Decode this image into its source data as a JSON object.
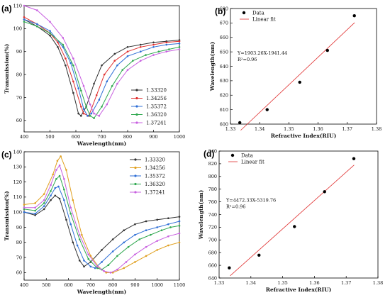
{
  "chart_data": [
    {
      "panel_label": "(a)",
      "type": "line",
      "xlabel": "Wavelength(nm)",
      "ylabel": "Transmission(%)",
      "xlim": [
        400,
        1000
      ],
      "ylim": [
        55,
        110
      ],
      "xticks": [
        400,
        500,
        600,
        700,
        800,
        900,
        1000
      ],
      "yticks": [
        60,
        70,
        80,
        90,
        100,
        110
      ],
      "legend_position": "right",
      "series": [
        {
          "name": "1.33320",
          "color": "#333333",
          "x": [
            400,
            450,
            500,
            530,
            560,
            590,
            610,
            620,
            640,
            670,
            700,
            750,
            800,
            850,
            900,
            950,
            1000
          ],
          "values": [
            104,
            101,
            97,
            92,
            84,
            72,
            63,
            62,
            66,
            76,
            84,
            89,
            92,
            93,
            94,
            94.5,
            95
          ]
        },
        {
          "name": "1.34256",
          "color": "#e03030",
          "x": [
            400,
            450,
            500,
            530,
            560,
            590,
            620,
            630,
            650,
            680,
            710,
            750,
            800,
            850,
            900,
            950,
            1000
          ],
          "values": [
            105,
            102,
            98,
            94,
            87,
            77,
            66,
            63,
            62,
            71,
            80,
            86,
            90,
            92,
            93,
            94,
            94.5
          ]
        },
        {
          "name": "1.35372",
          "color": "#2f6fd6",
          "x": [
            400,
            450,
            500,
            550,
            580,
            610,
            630,
            645,
            660,
            690,
            720,
            760,
            800,
            850,
            900,
            950,
            1000
          ],
          "values": [
            104,
            102,
            99,
            92,
            85,
            74,
            65,
            62,
            63,
            69,
            77,
            84,
            88,
            90,
            92,
            93,
            93.5
          ]
        },
        {
          "name": "1.36320",
          "color": "#2fa84f",
          "x": [
            400,
            450,
            500,
            550,
            590,
            620,
            640,
            655,
            670,
            700,
            740,
            780,
            820,
            870,
            920,
            960,
            1000
          ],
          "values": [
            103,
            101,
            98,
            93,
            84,
            73,
            66,
            62,
            61,
            66,
            75,
            82,
            86,
            88.5,
            90,
            91,
            92
          ]
        },
        {
          "name": "1.37241",
          "color": "#c860e0",
          "x": [
            400,
            450,
            500,
            550,
            590,
            630,
            655,
            670,
            690,
            720,
            760,
            800,
            850,
            900,
            950,
            1000
          ],
          "values": [
            110,
            108,
            103,
            96,
            87,
            75,
            67,
            63,
            62,
            67,
            76,
            82,
            86,
            88.5,
            90,
            91
          ]
        }
      ]
    },
    {
      "panel_label": "(b)",
      "type": "scatter",
      "xlabel": "Refractive Index(RIU)",
      "ylabel": "Wavelength(nm)",
      "xlim": [
        1.33,
        1.38
      ],
      "ylim": [
        600,
        680
      ],
      "xticks": [
        "1.33",
        "1.34",
        "1.35",
        "1.36",
        "1.37",
        "1.38"
      ],
      "yticks": [
        600,
        610,
        620,
        630,
        640,
        650,
        660,
        670,
        680
      ],
      "legend": [
        "Data",
        "Linear fit"
      ],
      "legend_position": "top-left",
      "points": {
        "x": [
          1.3332,
          1.34256,
          1.35372,
          1.3632,
          1.37241
        ],
        "y": [
          601,
          610,
          629,
          651,
          675
        ]
      },
      "fit": {
        "x": [
          1.3335,
          1.3725
        ],
        "y": [
          595.7,
          670.2
        ]
      },
      "annotation": [
        "Y=1903.26X-1941.44",
        "R²=0.96"
      ]
    },
    {
      "panel_label": "(c)",
      "type": "line",
      "xlabel": "Wavelength(nm)",
      "ylabel": "Transmission(%)",
      "xlim": [
        400,
        1100
      ],
      "ylim": [
        55,
        140
      ],
      "xticks": [
        400,
        500,
        600,
        700,
        800,
        900,
        1000,
        1100
      ],
      "yticks": [
        60,
        70,
        80,
        90,
        100,
        110,
        120,
        130,
        140
      ],
      "legend_position": "top-right",
      "series": [
        {
          "name": "1.33320",
          "color": "#333333",
          "x": [
            400,
            450,
            490,
            520,
            540,
            560,
            590,
            620,
            650,
            670,
            700,
            750,
            800,
            850,
            900,
            950,
            1000,
            1050,
            1100
          ],
          "values": [
            100,
            98,
            102,
            108,
            111,
            109,
            95,
            80,
            68,
            64,
            67,
            75,
            82,
            88,
            92,
            94,
            95,
            96,
            97
          ]
        },
        {
          "name": "1.34256",
          "color": "#e0a020",
          "x": [
            400,
            450,
            490,
            530,
            550,
            565,
            590,
            620,
            660,
            700,
            740,
            770,
            800,
            850,
            900,
            950,
            1000,
            1050,
            1100
          ],
          "values": [
            105,
            106,
            112,
            125,
            134,
            137,
            128,
            108,
            85,
            71,
            63,
            60,
            60,
            63,
            67,
            71,
            75,
            78,
            80
          ]
        },
        {
          "name": "1.35372",
          "color": "#2f6fd6",
          "x": [
            400,
            450,
            490,
            520,
            540,
            555,
            580,
            610,
            640,
            670,
            700,
            720,
            750,
            800,
            850,
            900,
            950,
            1000,
            1050,
            1100
          ],
          "values": [
            100,
            99,
            104,
            111,
            116,
            117,
            108,
            92,
            78,
            68,
            64,
            63,
            67,
            74,
            80,
            85,
            88,
            90,
            92,
            94
          ]
        },
        {
          "name": "1.36320",
          "color": "#2fa84f",
          "x": [
            400,
            450,
            490,
            520,
            545,
            560,
            580,
            610,
            650,
            690,
            730,
            750,
            780,
            820,
            870,
            920,
            970,
            1020,
            1060,
            1100
          ],
          "values": [
            102,
            101,
            106,
            114,
            122,
            124,
            115,
            99,
            82,
            69,
            63,
            62,
            65,
            71,
            77,
            82,
            85,
            88,
            90,
            91
          ]
        },
        {
          "name": "1.37241",
          "color": "#c860e0",
          "x": [
            400,
            450,
            490,
            520,
            545,
            560,
            580,
            610,
            650,
            690,
            730,
            760,
            790,
            820,
            860,
            900,
            950,
            1000,
            1050,
            1100
          ],
          "values": [
            103,
            103,
            108,
            118,
            128,
            131,
            122,
            103,
            85,
            72,
            64,
            61,
            60,
            62,
            67,
            72,
            77,
            81,
            84,
            86
          ]
        }
      ]
    },
    {
      "panel_label": "(d)",
      "type": "scatter",
      "xlabel": "Refractive Index(RIU)",
      "ylabel": "Wavelength(nm)",
      "xlim": [
        1.33,
        1.38
      ],
      "ylim": [
        640,
        840
      ],
      "xticks": [
        "1.33",
        "1.34",
        "1.35",
        "1.36",
        "1.37",
        "1.38"
      ],
      "yticks": [
        640,
        660,
        680,
        700,
        720,
        740,
        760,
        780,
        800,
        820,
        840
      ],
      "legend": [
        "Data",
        "Linear fit"
      ],
      "legend_position": "top-left",
      "points": {
        "x": [
          1.3332,
          1.34256,
          1.35372,
          1.3632,
          1.37241
        ],
        "y": [
          656,
          676,
          721,
          776,
          828
        ]
      },
      "fit": {
        "x": [
          1.3335,
          1.3725
        ],
        "y": [
          643.6,
          818.0
        ]
      },
      "annotation": [
        "Y=4472.33X-5319.76",
        "R²=0.96"
      ]
    }
  ]
}
